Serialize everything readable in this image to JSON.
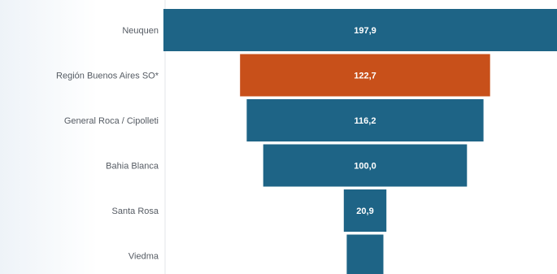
{
  "chart_data": {
    "type": "bar",
    "orientation": "horizontal-funnel",
    "categories": [
      "Neuquen",
      "Región Buenos Aires SO*",
      "General Roca / Cipolleti",
      "Bahia Blanca",
      "Santa Rosa",
      "Viedma"
    ],
    "values": [
      197.9,
      122.7,
      116.2,
      100.0,
      20.9,
      18.0
    ],
    "value_labels": [
      "197,9",
      "122,7",
      "116,2",
      "100,0",
      "20,9",
      ""
    ],
    "highlight_index": 1,
    "colors": {
      "default": "#1e6486",
      "highlight": "#c8501a",
      "axis_line": "#e3e6ea"
    },
    "title": "",
    "xlabel": "",
    "ylabel": ""
  }
}
